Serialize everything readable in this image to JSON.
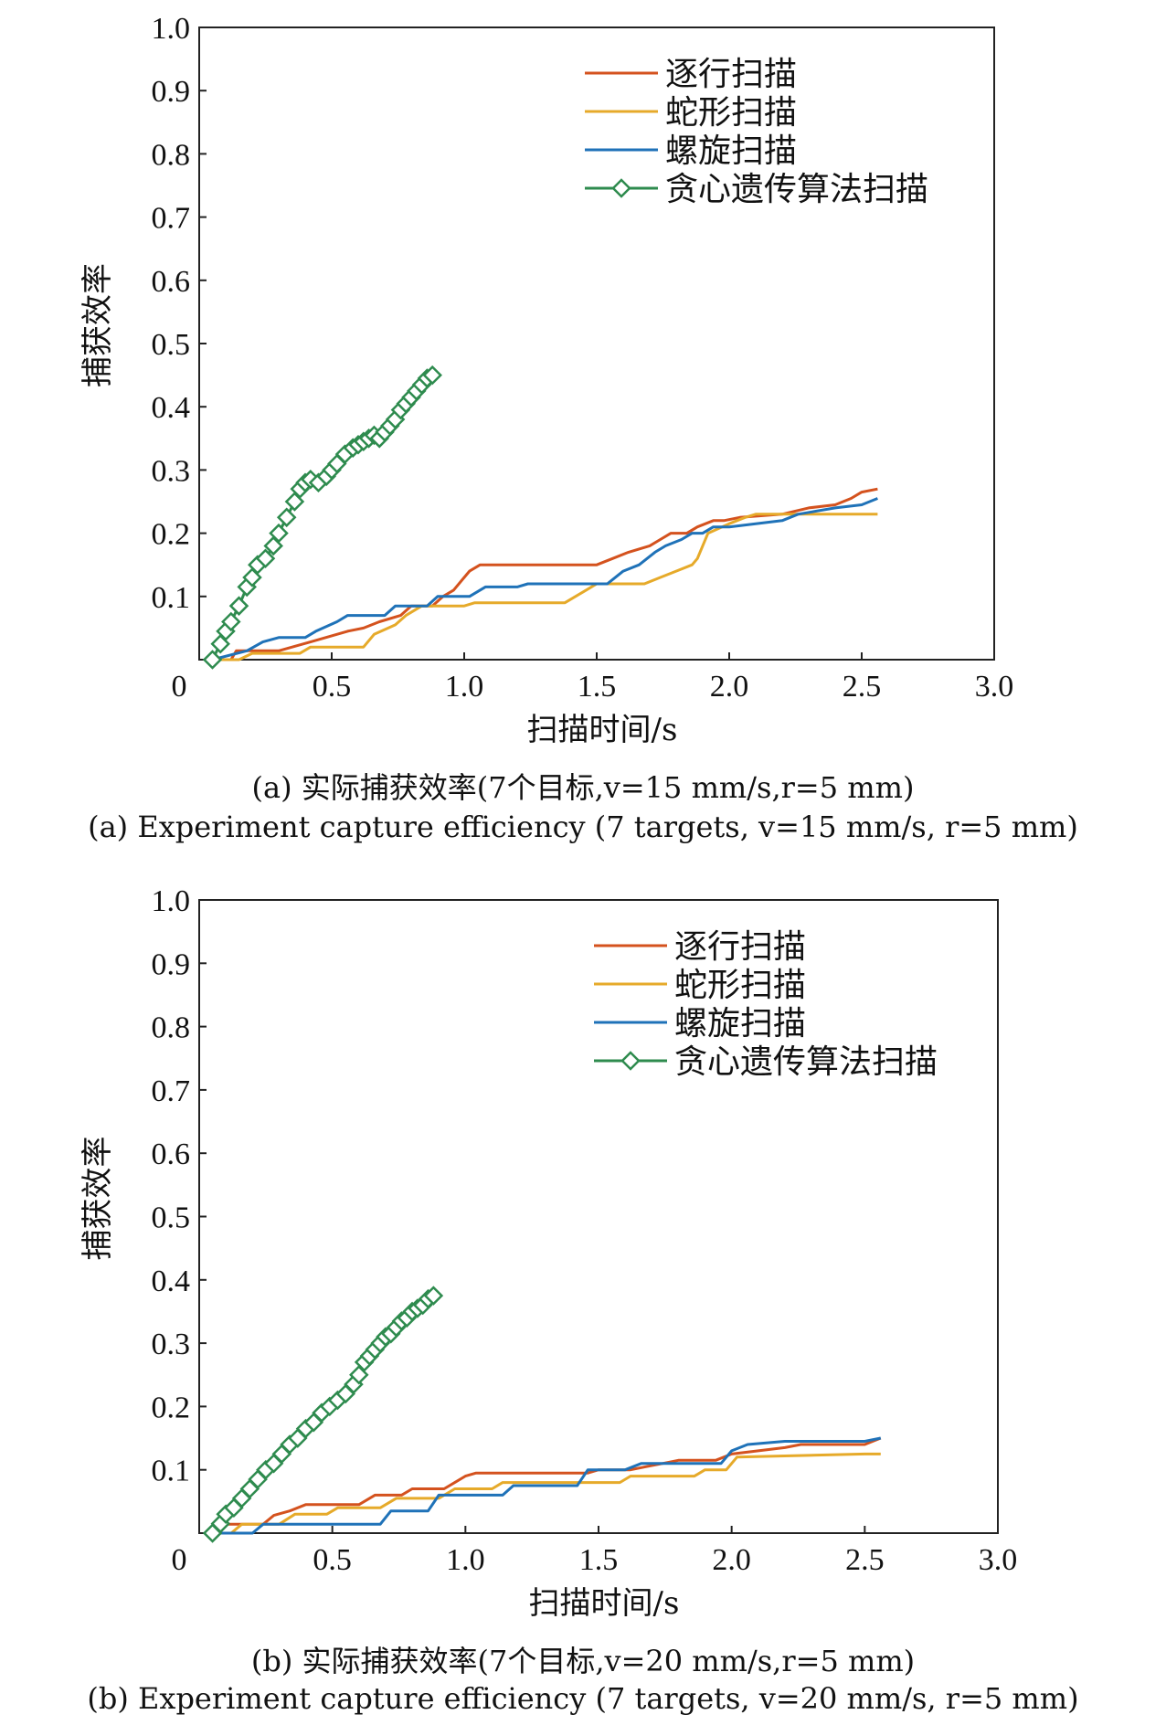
{
  "chart_data": [
    {
      "type": "line",
      "panel": "a",
      "caption_cn": "(a) 实际捕获效率(7个目标,v=15 mm/s,r=5 mm)",
      "caption_en": "(a) Experiment capture efficiency (7 targets, v=15 mm/s, r=5 mm)",
      "xlabel": "扫描时间/s",
      "ylabel": "捕获效率",
      "xlim": [
        0,
        3.0
      ],
      "ylim": [
        0,
        1.0
      ],
      "xticks": [
        "0",
        "0.5",
        "1.0",
        "1.5",
        "2.0",
        "2.5",
        "3.0"
      ],
      "yticks": [
        "0.1",
        "0.2",
        "0.3",
        "0.4",
        "0.5",
        "0.6",
        "0.7",
        "0.8",
        "0.9",
        "1.0"
      ],
      "legend_position": "top-right",
      "series": [
        {
          "name": "逐行扫描",
          "color": "#D4521E",
          "marker": "none",
          "x": [
            0.05,
            0.12,
            0.14,
            0.3,
            0.42,
            0.56,
            0.62,
            0.68,
            0.76,
            0.8,
            0.88,
            0.92,
            0.96,
            1.0,
            1.02,
            1.06,
            1.5,
            1.56,
            1.62,
            1.7,
            1.74,
            1.78,
            1.84,
            1.88,
            1.94,
            1.98,
            2.04,
            2.2,
            2.3,
            2.4,
            2.46,
            2.5,
            2.56
          ],
          "y": [
            0.0,
            0.0,
            0.014,
            0.014,
            0.028,
            0.045,
            0.05,
            0.06,
            0.07,
            0.085,
            0.085,
            0.1,
            0.11,
            0.13,
            0.14,
            0.15,
            0.15,
            0.16,
            0.17,
            0.18,
            0.19,
            0.2,
            0.2,
            0.21,
            0.22,
            0.22,
            0.225,
            0.23,
            0.24,
            0.245,
            0.255,
            0.265,
            0.27
          ]
        },
        {
          "name": "蛇形扫描",
          "color": "#E6AA2A",
          "marker": "none",
          "x": [
            0.05,
            0.15,
            0.2,
            0.38,
            0.42,
            0.62,
            0.66,
            0.74,
            0.78,
            0.84,
            1.0,
            1.04,
            1.38,
            1.42,
            1.46,
            1.5,
            1.68,
            1.74,
            1.8,
            1.86,
            1.88,
            1.92,
            2.0,
            2.06,
            2.1,
            2.56
          ],
          "y": [
            0.0,
            0.0,
            0.01,
            0.01,
            0.02,
            0.02,
            0.04,
            0.055,
            0.07,
            0.085,
            0.085,
            0.09,
            0.09,
            0.1,
            0.11,
            0.12,
            0.12,
            0.13,
            0.14,
            0.15,
            0.16,
            0.2,
            0.215,
            0.225,
            0.23,
            0.23
          ]
        },
        {
          "name": "螺旋扫描",
          "color": "#1F72B8",
          "marker": "none",
          "x": [
            0.05,
            0.18,
            0.24,
            0.3,
            0.4,
            0.44,
            0.52,
            0.56,
            0.7,
            0.74,
            0.86,
            0.9,
            1.02,
            1.08,
            1.2,
            1.24,
            1.54,
            1.6,
            1.66,
            1.72,
            1.76,
            1.82,
            1.86,
            1.9,
            1.94,
            2.0,
            2.2,
            2.26,
            2.4,
            2.5,
            2.56
          ],
          "y": [
            0.0,
            0.014,
            0.028,
            0.035,
            0.035,
            0.045,
            0.06,
            0.07,
            0.07,
            0.085,
            0.085,
            0.1,
            0.1,
            0.115,
            0.115,
            0.12,
            0.12,
            0.14,
            0.15,
            0.17,
            0.18,
            0.19,
            0.2,
            0.2,
            0.21,
            0.21,
            0.22,
            0.23,
            0.24,
            0.245,
            0.255
          ]
        },
        {
          "name": "贪心遗传算法扫描",
          "color": "#2E8B4E",
          "marker": "diamond",
          "x": [
            0.05,
            0.08,
            0.1,
            0.12,
            0.15,
            0.18,
            0.2,
            0.22,
            0.25,
            0.28,
            0.3,
            0.33,
            0.36,
            0.38,
            0.4,
            0.42,
            0.45,
            0.48,
            0.5,
            0.52,
            0.55,
            0.58,
            0.6,
            0.62,
            0.64,
            0.66,
            0.68,
            0.7,
            0.72,
            0.74,
            0.76,
            0.78,
            0.8,
            0.82,
            0.84,
            0.86,
            0.88
          ],
          "y": [
            0.0,
            0.025,
            0.045,
            0.06,
            0.085,
            0.115,
            0.13,
            0.15,
            0.16,
            0.18,
            0.2,
            0.225,
            0.25,
            0.27,
            0.28,
            0.285,
            0.28,
            0.29,
            0.3,
            0.31,
            0.325,
            0.335,
            0.34,
            0.345,
            0.35,
            0.355,
            0.35,
            0.36,
            0.37,
            0.38,
            0.395,
            0.405,
            0.415,
            0.425,
            0.435,
            0.445,
            0.45
          ]
        }
      ]
    },
    {
      "type": "line",
      "panel": "b",
      "caption_cn": "(b) 实际捕获效率(7个目标,v=20 mm/s,r=5 mm)",
      "caption_en": "(b) Experiment capture efficiency (7 targets, v=20 mm/s, r=5 mm)",
      "xlabel": "扫描时间/s",
      "ylabel": "捕获效率",
      "xlim": [
        0,
        3.0
      ],
      "ylim": [
        0,
        1.0
      ],
      "xticks": [
        "0",
        "0.5",
        "1.0",
        "1.5",
        "2.0",
        "2.5",
        "3.0"
      ],
      "yticks": [
        "0.1",
        "0.2",
        "0.3",
        "0.4",
        "0.5",
        "0.6",
        "0.7",
        "0.8",
        "0.9",
        "1.0"
      ],
      "legend_position": "top-right",
      "series": [
        {
          "name": "逐行扫描",
          "color": "#D4521E",
          "marker": "none",
          "x": [
            0.05,
            0.1,
            0.24,
            0.28,
            0.34,
            0.4,
            0.6,
            0.66,
            0.76,
            0.8,
            0.92,
            0.96,
            1.0,
            1.04,
            1.46,
            1.5,
            1.62,
            1.68,
            1.74,
            1.8,
            1.94,
            2.0,
            2.2,
            2.26,
            2.5,
            2.56
          ],
          "y": [
            0.0,
            0.014,
            0.014,
            0.028,
            0.035,
            0.045,
            0.045,
            0.06,
            0.06,
            0.07,
            0.07,
            0.08,
            0.09,
            0.095,
            0.095,
            0.1,
            0.1,
            0.105,
            0.11,
            0.115,
            0.115,
            0.125,
            0.135,
            0.14,
            0.14,
            0.15
          ]
        },
        {
          "name": "蛇形扫描",
          "color": "#E6AA2A",
          "marker": "none",
          "x": [
            0.05,
            0.12,
            0.16,
            0.3,
            0.36,
            0.48,
            0.52,
            0.68,
            0.74,
            0.9,
            0.96,
            1.1,
            1.14,
            1.58,
            1.62,
            1.86,
            1.9,
            1.98,
            2.02,
            2.5,
            2.56
          ],
          "y": [
            0.0,
            0.0,
            0.014,
            0.014,
            0.03,
            0.03,
            0.04,
            0.04,
            0.055,
            0.055,
            0.07,
            0.07,
            0.08,
            0.08,
            0.09,
            0.09,
            0.1,
            0.1,
            0.12,
            0.125,
            0.125
          ]
        },
        {
          "name": "螺旋扫描",
          "color": "#1F72B8",
          "marker": "none",
          "x": [
            0.05,
            0.2,
            0.24,
            0.4,
            0.44,
            0.68,
            0.72,
            0.86,
            0.9,
            1.14,
            1.18,
            1.42,
            1.46,
            1.6,
            1.66,
            1.96,
            2.0,
            2.06,
            2.2,
            2.5,
            2.56
          ],
          "y": [
            0.0,
            0.0,
            0.014,
            0.014,
            0.014,
            0.014,
            0.035,
            0.035,
            0.06,
            0.06,
            0.075,
            0.075,
            0.1,
            0.1,
            0.11,
            0.11,
            0.13,
            0.14,
            0.145,
            0.145,
            0.15
          ]
        },
        {
          "name": "贪心遗传算法扫描",
          "color": "#2E8B4E",
          "marker": "diamond",
          "x": [
            0.05,
            0.08,
            0.1,
            0.13,
            0.16,
            0.19,
            0.22,
            0.25,
            0.28,
            0.31,
            0.34,
            0.37,
            0.4,
            0.43,
            0.46,
            0.49,
            0.52,
            0.55,
            0.58,
            0.6,
            0.62,
            0.64,
            0.66,
            0.68,
            0.7,
            0.72,
            0.74,
            0.76,
            0.78,
            0.8,
            0.82,
            0.84,
            0.86,
            0.88
          ],
          "y": [
            0.0,
            0.015,
            0.03,
            0.04,
            0.055,
            0.07,
            0.085,
            0.1,
            0.11,
            0.125,
            0.14,
            0.15,
            0.165,
            0.175,
            0.19,
            0.2,
            0.21,
            0.22,
            0.235,
            0.25,
            0.27,
            0.28,
            0.29,
            0.3,
            0.31,
            0.315,
            0.325,
            0.335,
            0.34,
            0.35,
            0.355,
            0.36,
            0.37,
            0.375
          ]
        }
      ]
    }
  ]
}
